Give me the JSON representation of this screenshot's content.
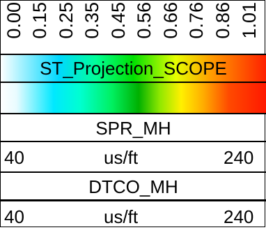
{
  "ticks": [
    "0.00",
    "0.15",
    "0.25",
    "0.35",
    "0.45",
    "0.56",
    "0.66",
    "0.76",
    "0.86",
    "1.01"
  ],
  "title": "ST_Projection_SCOPE",
  "colorbar_colors": [
    "#ffffff",
    "#00e8ff",
    "#00ffd0",
    "#00f060",
    "#00b000",
    "#fff000",
    "#ffb000",
    "#ff1800"
  ],
  "tracks": [
    {
      "name": "SPR_MH",
      "min": "40",
      "unit": "us/ft",
      "max": "240"
    },
    {
      "name": "DTCO_MH",
      "min": "40",
      "unit": "us/ft",
      "max": "240"
    }
  ]
}
